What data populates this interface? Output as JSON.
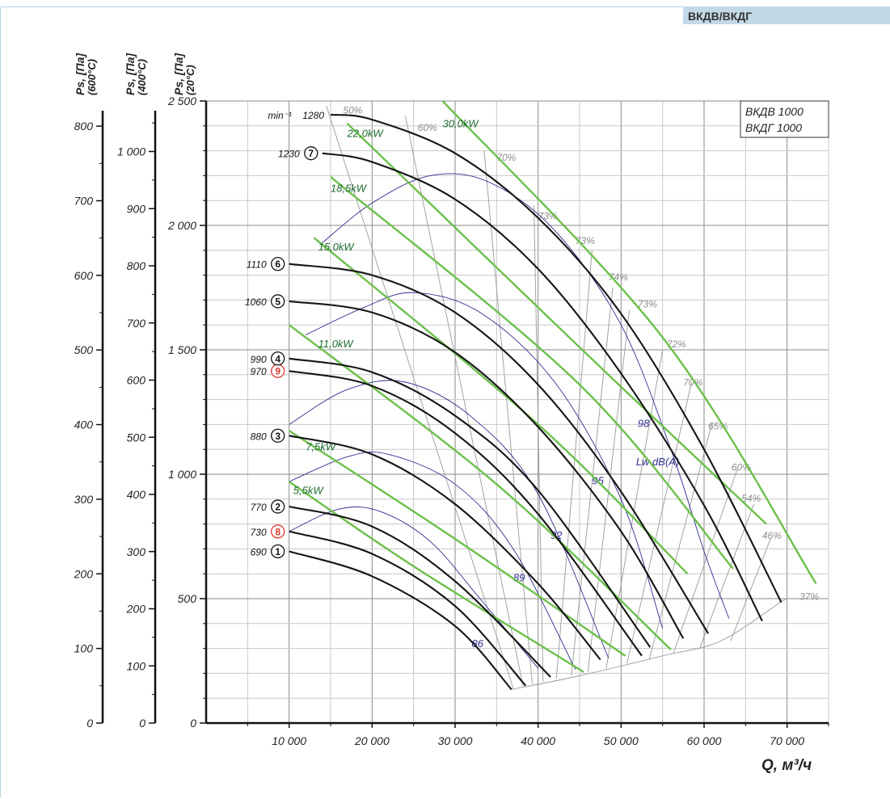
{
  "header": {
    "badge": "ВКДВ/ВКДГ"
  },
  "chart_data": {
    "type": "line",
    "title_lines": [
      "ВКДВ 1000",
      "ВКДГ 1000"
    ],
    "xlabel": "Q, м³/ч",
    "xlim": [
      0,
      75000
    ],
    "x_ticks": [
      10000,
      20000,
      30000,
      40000,
      50000,
      60000,
      70000
    ],
    "x_tick_labels": [
      "10 000",
      "20 000",
      "30 000",
      "40 000",
      "50 000",
      "60 000",
      "70 000"
    ],
    "ylim": [
      0,
      2500
    ],
    "y_axes": [
      {
        "label": "Ps, [Па]",
        "condition": "(20°C)",
        "ticks": [
          0,
          500,
          1000,
          1500,
          2000,
          2500
        ],
        "tick_labels": [
          "0",
          "500",
          "1 000",
          "1 500",
          "2 000",
          "2 500"
        ]
      },
      {
        "label": "Ps, [Па]",
        "condition": "(400°C)",
        "ticks": [
          0,
          100,
          200,
          300,
          400,
          500,
          600,
          700,
          800,
          900,
          1000
        ],
        "tick_labels": [
          "0",
          "100",
          "200",
          "300",
          "400",
          "500",
          "600",
          "700",
          "800",
          "900",
          "1 000"
        ]
      },
      {
        "label": "Ps, [Па]",
        "condition": "(600°C)",
        "ticks": [
          0,
          100,
          200,
          300,
          400,
          500,
          600,
          700,
          800
        ],
        "tick_labels": [
          "0",
          "100",
          "200",
          "300",
          "400",
          "500",
          "600",
          "700",
          "800"
        ]
      }
    ],
    "speed_unit": "min⁻¹",
    "speed_curves": [
      {
        "id": "1",
        "rpm": "690",
        "color": "black",
        "points": [
          [
            10000,
            690
          ],
          [
            20000,
            590
          ],
          [
            30000,
            390
          ],
          [
            36800,
            135
          ]
        ]
      },
      {
        "id": "8",
        "rpm": "730",
        "color": "red",
        "points": [
          [
            10000,
            770
          ],
          [
            20000,
            680
          ],
          [
            30000,
            470
          ],
          [
            38500,
            150
          ]
        ]
      },
      {
        "id": "2",
        "rpm": "770",
        "color": "black",
        "points": [
          [
            10000,
            870
          ],
          [
            20000,
            790
          ],
          [
            30000,
            570
          ],
          [
            41500,
            185
          ]
        ]
      },
      {
        "id": "3",
        "rpm": "880",
        "color": "black",
        "points": [
          [
            10000,
            1155
          ],
          [
            20000,
            1080
          ],
          [
            30000,
            880
          ],
          [
            40000,
            560
          ],
          [
            47500,
            255
          ]
        ]
      },
      {
        "id": "9",
        "rpm": "970",
        "color": "red",
        "points": [
          [
            10000,
            1415
          ],
          [
            20000,
            1355
          ],
          [
            30000,
            1165
          ],
          [
            40000,
            840
          ],
          [
            52500,
            270
          ]
        ]
      },
      {
        "id": "4",
        "rpm": "990",
        "color": "black",
        "points": [
          [
            10000,
            1465
          ],
          [
            20000,
            1410
          ],
          [
            30000,
            1235
          ],
          [
            40000,
            935
          ],
          [
            53500,
            305
          ]
        ]
      },
      {
        "id": "5",
        "rpm": "1060",
        "color": "black",
        "points": [
          [
            10000,
            1695
          ],
          [
            20000,
            1650
          ],
          [
            30000,
            1490
          ],
          [
            40000,
            1190
          ],
          [
            50000,
            770
          ],
          [
            57500,
            340
          ]
        ]
      },
      {
        "id": "6",
        "rpm": "1110",
        "color": "black",
        "points": [
          [
            10000,
            1845
          ],
          [
            20000,
            1800
          ],
          [
            30000,
            1650
          ],
          [
            40000,
            1360
          ],
          [
            50000,
            930
          ],
          [
            60500,
            360
          ]
        ]
      },
      {
        "id": "7",
        "rpm": "1230",
        "color": "black",
        "points": [
          [
            14000,
            2290
          ],
          [
            20000,
            2255
          ],
          [
            30000,
            2105
          ],
          [
            40000,
            1825
          ],
          [
            50000,
            1405
          ],
          [
            60000,
            875
          ],
          [
            67000,
            410
          ]
        ]
      },
      {
        "id": "",
        "rpm": "1280",
        "color": "black",
        "points": [
          [
            15000,
            2445
          ],
          [
            20000,
            2425
          ],
          [
            30000,
            2290
          ],
          [
            40000,
            2030
          ],
          [
            50000,
            1645
          ],
          [
            60000,
            1100
          ],
          [
            69300,
            485
          ]
        ]
      }
    ],
    "efficiency_labels": [
      "50%",
      "60%",
      "70%",
      "73%",
      "73%",
      "74%",
      "73%",
      "72%",
      "70%",
      "65%",
      "60%",
      "54%",
      "46%",
      "37%"
    ],
    "power_lines": [
      {
        "label": "5,5kW",
        "points": [
          [
            10000,
            970
          ],
          [
            25000,
            630
          ],
          [
            45500,
            205
          ]
        ]
      },
      {
        "label": "7,5kW",
        "points": [
          [
            10000,
            1175
          ],
          [
            30000,
            740
          ],
          [
            50500,
            270
          ]
        ]
      },
      {
        "label": "11,0kW",
        "points": [
          [
            10000,
            1600
          ],
          [
            35000,
            960
          ],
          [
            56000,
            295
          ]
        ]
      },
      {
        "label": "15,0kW",
        "points": [
          [
            13000,
            1950
          ],
          [
            40000,
            1200
          ],
          [
            58000,
            600
          ]
        ]
      },
      {
        "label": "18,5kW",
        "points": [
          [
            15000,
            2195
          ],
          [
            45000,
            1360
          ],
          [
            63500,
            620
          ]
        ]
      },
      {
        "label": "22,0kW",
        "points": [
          [
            17000,
            2410
          ],
          [
            45000,
            1510
          ],
          [
            67500,
            800
          ]
        ]
      },
      {
        "label": "30,0kW",
        "points": [
          [
            28500,
            2500
          ],
          [
            55000,
            1550
          ],
          [
            73500,
            560
          ]
        ]
      }
    ],
    "noise_label": "Lw dB(A)",
    "noise_values": [
      "86",
      "89",
      "92",
      "95",
      "98"
    ]
  }
}
